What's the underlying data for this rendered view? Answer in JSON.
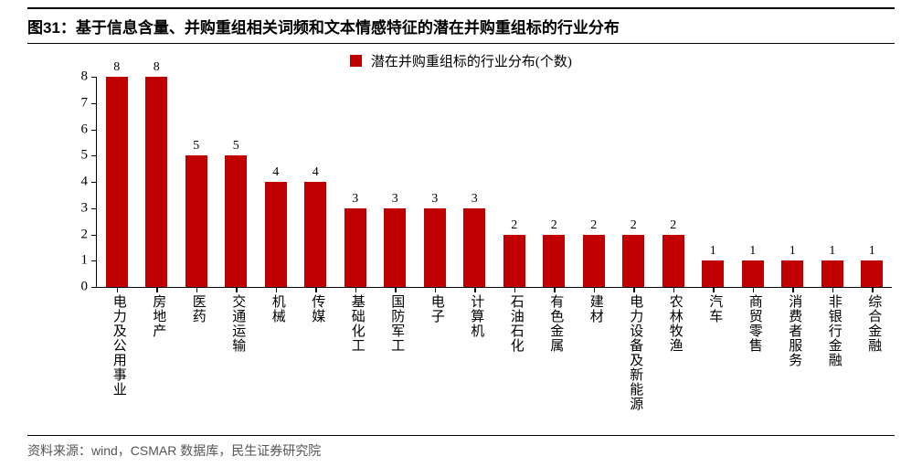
{
  "title": "图31：基于信息含量、并购重组相关词频和文本情感特征的潜在并购重组标的行业分布",
  "legend": {
    "text": "潜在并购重组标的行业分布(个数)",
    "swatch_color": "#c00000"
  },
  "chart": {
    "type": "bar",
    "bar_color": "#c00000",
    "axis_color": "#000000",
    "background_color": "#ffffff",
    "ylim": [
      0,
      8
    ],
    "ytick_step": 1,
    "yticks": [
      0,
      1,
      2,
      3,
      4,
      5,
      6,
      7,
      8
    ],
    "bar_width_ratio": 0.55,
    "title_fontsize": 17,
    "label_fontsize": 15,
    "value_fontsize": 14,
    "categories": [
      "电力及公用事业",
      "房地产",
      "医药",
      "交通运输",
      "机械",
      "传媒",
      "基础化工",
      "国防军工",
      "电子",
      "计算机",
      "石油石化",
      "有色金属",
      "建材",
      "电力设备及新能源",
      "农林牧渔",
      "汽车",
      "商贸零售",
      "消费者服务",
      "非银行金融",
      "综合金融"
    ],
    "values": [
      8,
      8,
      5,
      5,
      4,
      4,
      3,
      3,
      3,
      3,
      2,
      2,
      2,
      2,
      2,
      1,
      1,
      1,
      1,
      1
    ]
  },
  "footer": "资料来源：wind，CSMAR 数据库，民生证券研究院"
}
